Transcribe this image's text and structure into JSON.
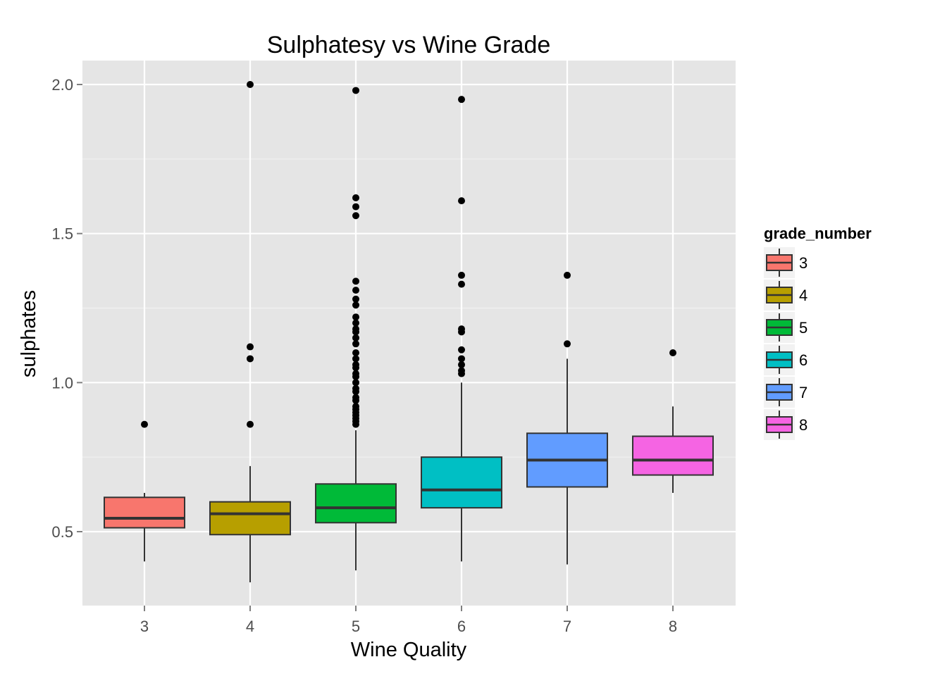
{
  "chart_data": {
    "type": "boxplot",
    "title": "Sulphatesy vs Wine Grade",
    "xlabel": "Wine Quality",
    "ylabel": "sulphates",
    "categories": [
      "3",
      "4",
      "5",
      "6",
      "7",
      "8"
    ],
    "yticks": [
      "0.5",
      "1.0",
      "1.5",
      "2.0"
    ],
    "ytick_values": [
      0.5,
      1.0,
      1.5,
      2.0
    ],
    "ylim": [
      0.26,
      2.08
    ],
    "grid": true,
    "legend": {
      "title": "grade_number",
      "position": "right",
      "entries": [
        "3",
        "4",
        "5",
        "6",
        "7",
        "8"
      ]
    },
    "series": [
      {
        "name": "3",
        "color": "#F8766D",
        "whisker_low": 0.4,
        "q1": 0.513,
        "median": 0.545,
        "q3": 0.615,
        "whisker_high": 0.63,
        "outliers": [
          0.86
        ]
      },
      {
        "name": "4",
        "color": "#B79F00",
        "whisker_low": 0.33,
        "q1": 0.49,
        "median": 0.56,
        "q3": 0.6,
        "whisker_high": 0.72,
        "outliers": [
          0.86,
          1.08,
          1.12,
          2.0
        ]
      },
      {
        "name": "5",
        "color": "#00BA38",
        "whisker_low": 0.37,
        "q1": 0.53,
        "median": 0.58,
        "q3": 0.66,
        "whisker_high": 0.84,
        "outliers": [
          0.86,
          0.87,
          0.88,
          0.89,
          0.9,
          0.91,
          0.92,
          0.94,
          0.95,
          0.97,
          0.98,
          1.0,
          1.02,
          1.03,
          1.05,
          1.06,
          1.08,
          1.1,
          1.13,
          1.15,
          1.17,
          1.18,
          1.2,
          1.22,
          1.26,
          1.28,
          1.31,
          1.34,
          1.56,
          1.59,
          1.62,
          1.98
        ]
      },
      {
        "name": "6",
        "color": "#00BFC4",
        "whisker_low": 0.4,
        "q1": 0.58,
        "median": 0.64,
        "q3": 0.75,
        "whisker_high": 1.0,
        "outliers": [
          1.03,
          1.04,
          1.06,
          1.08,
          1.11,
          1.17,
          1.18,
          1.33,
          1.36,
          1.61,
          1.95
        ]
      },
      {
        "name": "7",
        "color": "#619CFF",
        "whisker_low": 0.39,
        "q1": 0.65,
        "median": 0.74,
        "q3": 0.83,
        "whisker_high": 1.08,
        "outliers": [
          1.13,
          1.36
        ]
      },
      {
        "name": "8",
        "color": "#F564E3",
        "whisker_low": 0.63,
        "q1": 0.69,
        "median": 0.74,
        "q3": 0.82,
        "whisker_high": 0.92,
        "outliers": [
          1.1
        ]
      }
    ]
  }
}
